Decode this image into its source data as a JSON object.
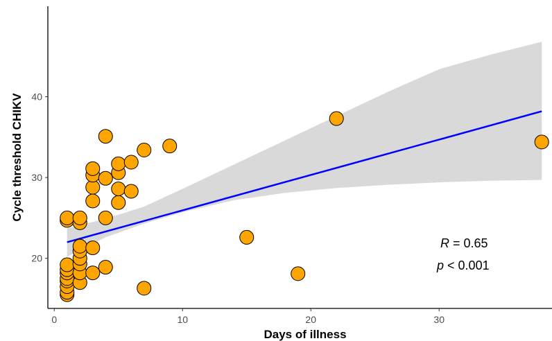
{
  "chart_data": {
    "type": "scatter",
    "xlabel": "Days of illness",
    "ylabel": "Cycle threshold CHIKV",
    "xlim": [
      -0.5,
      38.8
    ],
    "ylim": [
      13.8,
      51.2
    ],
    "x_ticks": [
      0,
      10,
      20,
      30
    ],
    "y_ticks": [
      20,
      30,
      40
    ],
    "grid": false,
    "points": [
      {
        "x": 1,
        "y": 15.5
      },
      {
        "x": 1,
        "y": 15.8
      },
      {
        "x": 1,
        "y": 16.5
      },
      {
        "x": 1,
        "y": 17.2
      },
      {
        "x": 1,
        "y": 17.5
      },
      {
        "x": 1,
        "y": 18.2
      },
      {
        "x": 1,
        "y": 18.6
      },
      {
        "x": 1,
        "y": 19.2
      },
      {
        "x": 1,
        "y": 24.7
      },
      {
        "x": 1,
        "y": 25.0
      },
      {
        "x": 2,
        "y": 17.0
      },
      {
        "x": 2,
        "y": 18.2
      },
      {
        "x": 2,
        "y": 19.3
      },
      {
        "x": 2,
        "y": 20.0
      },
      {
        "x": 2,
        "y": 20.9
      },
      {
        "x": 2,
        "y": 21.5
      },
      {
        "x": 2,
        "y": 24.4
      },
      {
        "x": 2,
        "y": 25.0
      },
      {
        "x": 3,
        "y": 18.2
      },
      {
        "x": 3,
        "y": 21.3
      },
      {
        "x": 3,
        "y": 27.1
      },
      {
        "x": 3,
        "y": 28.8
      },
      {
        "x": 3,
        "y": 30.3
      },
      {
        "x": 3,
        "y": 31.1
      },
      {
        "x": 4,
        "y": 18.9
      },
      {
        "x": 4,
        "y": 25.0
      },
      {
        "x": 4,
        "y": 29.9
      },
      {
        "x": 4,
        "y": 35.1
      },
      {
        "x": 5,
        "y": 26.9
      },
      {
        "x": 5,
        "y": 28.6
      },
      {
        "x": 5,
        "y": 30.6
      },
      {
        "x": 5,
        "y": 31.7
      },
      {
        "x": 6,
        "y": 28.3
      },
      {
        "x": 6,
        "y": 31.9
      },
      {
        "x": 7,
        "y": 16.3
      },
      {
        "x": 7,
        "y": 33.4
      },
      {
        "x": 9,
        "y": 33.9
      },
      {
        "x": 15,
        "y": 22.6
      },
      {
        "x": 19,
        "y": 18.1
      },
      {
        "x": 22,
        "y": 37.3
      },
      {
        "x": 38,
        "y": 34.4
      }
    ],
    "fit": {
      "x": [
        1,
        38
      ],
      "y": [
        22.0,
        38.2
      ]
    },
    "ci_band": {
      "x": [
        1,
        4,
        7,
        10,
        14,
        18,
        22,
        26,
        30,
        34,
        38
      ],
      "lower": [
        20.2,
        22.6,
        24.3,
        25.7,
        27.2,
        28.1,
        28.7,
        29.1,
        29.4,
        29.6,
        29.7
      ],
      "upper": [
        23.7,
        24.9,
        26.4,
        28.6,
        31.6,
        34.6,
        37.6,
        40.6,
        43.4,
        45.2,
        46.8
      ]
    },
    "point_color": "#FFA500",
    "point_edge": "#000000",
    "line_color": "#0000FF",
    "band_color": "#D9D9D9",
    "annotation": {
      "r_label": "R",
      "r_value": "= 0.65",
      "p_label": "p",
      "p_value": "< 0.001"
    }
  }
}
